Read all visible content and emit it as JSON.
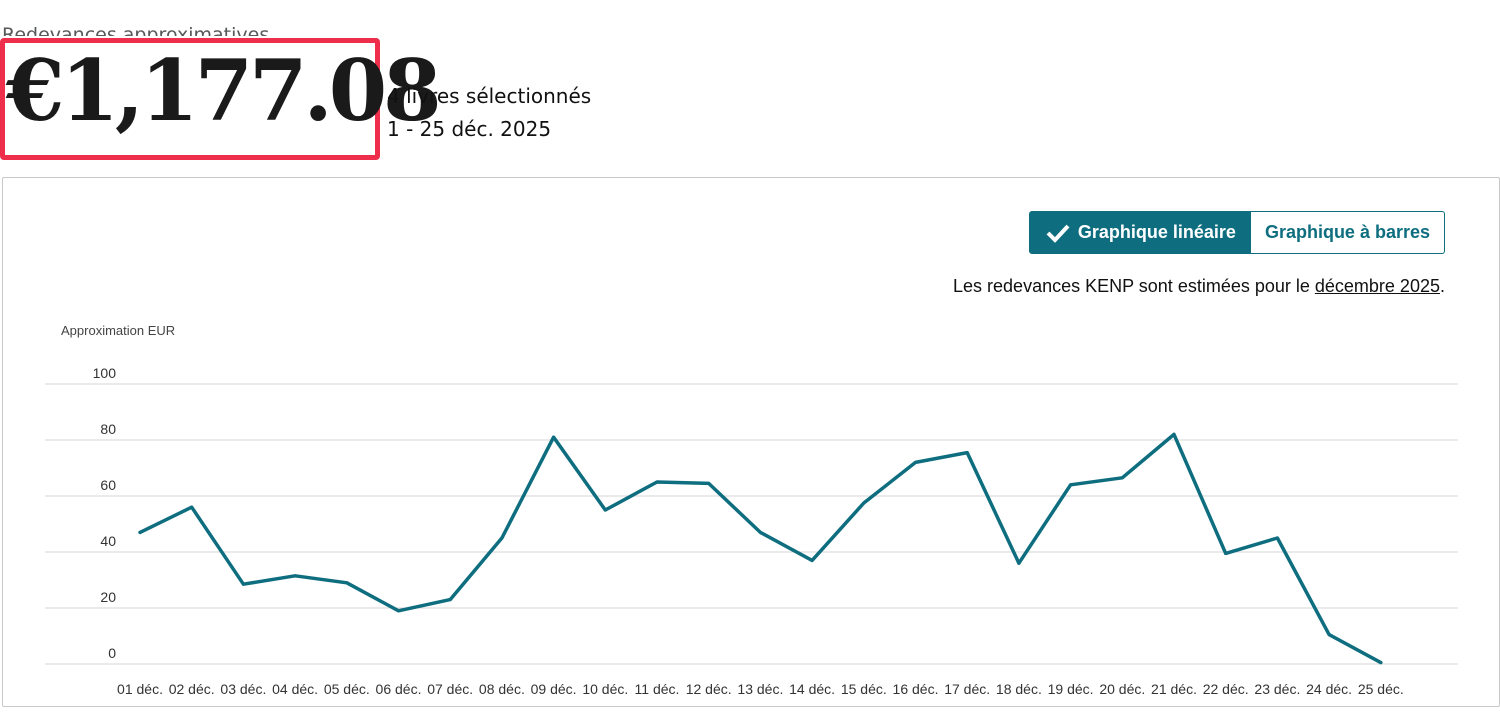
{
  "header": {
    "label": "Redevances approximatives",
    "amount": "€1,177.08",
    "books_selected": "4 livres sélectionnés",
    "date_range": "1 - 25 déc. 2025"
  },
  "toggle": {
    "line_label": "Graphique linéaire",
    "bar_label": "Graphique à barres",
    "active": "line"
  },
  "note": {
    "text": "Les redevances KENP sont estimées pour le ",
    "link": "décembre 2025",
    "end": "."
  },
  "colors": {
    "accent": "#0e6e7f",
    "highlight": "#ee2e4a",
    "grid": "#d5d5d5"
  },
  "chart_data": {
    "type": "line",
    "ylabel": "Approximation EUR",
    "xlabel": "",
    "ylim": [
      0,
      100
    ],
    "yticks": [
      0,
      20,
      40,
      60,
      80,
      100
    ],
    "grid": true,
    "categories": [
      "01 déc.",
      "02 déc.",
      "03 déc.",
      "04 déc.",
      "05 déc.",
      "06 déc.",
      "07 déc.",
      "08 déc.",
      "09 déc.",
      "10 déc.",
      "11 déc.",
      "12 déc.",
      "13 déc.",
      "14 déc.",
      "15 déc.",
      "16 déc.",
      "17 déc.",
      "18 déc.",
      "19 déc.",
      "20 déc.",
      "21 déc.",
      "22 déc.",
      "23 déc.",
      "24 déc.",
      "25 déc."
    ],
    "series": [
      {
        "values": [
          47,
          56,
          28.5,
          31.5,
          29,
          19,
          23,
          45,
          81,
          55,
          65,
          64.5,
          47,
          37,
          57.5,
          72,
          75.5,
          36,
          64,
          66.5,
          82,
          39.5,
          45,
          10.5,
          0.5
        ]
      }
    ]
  }
}
